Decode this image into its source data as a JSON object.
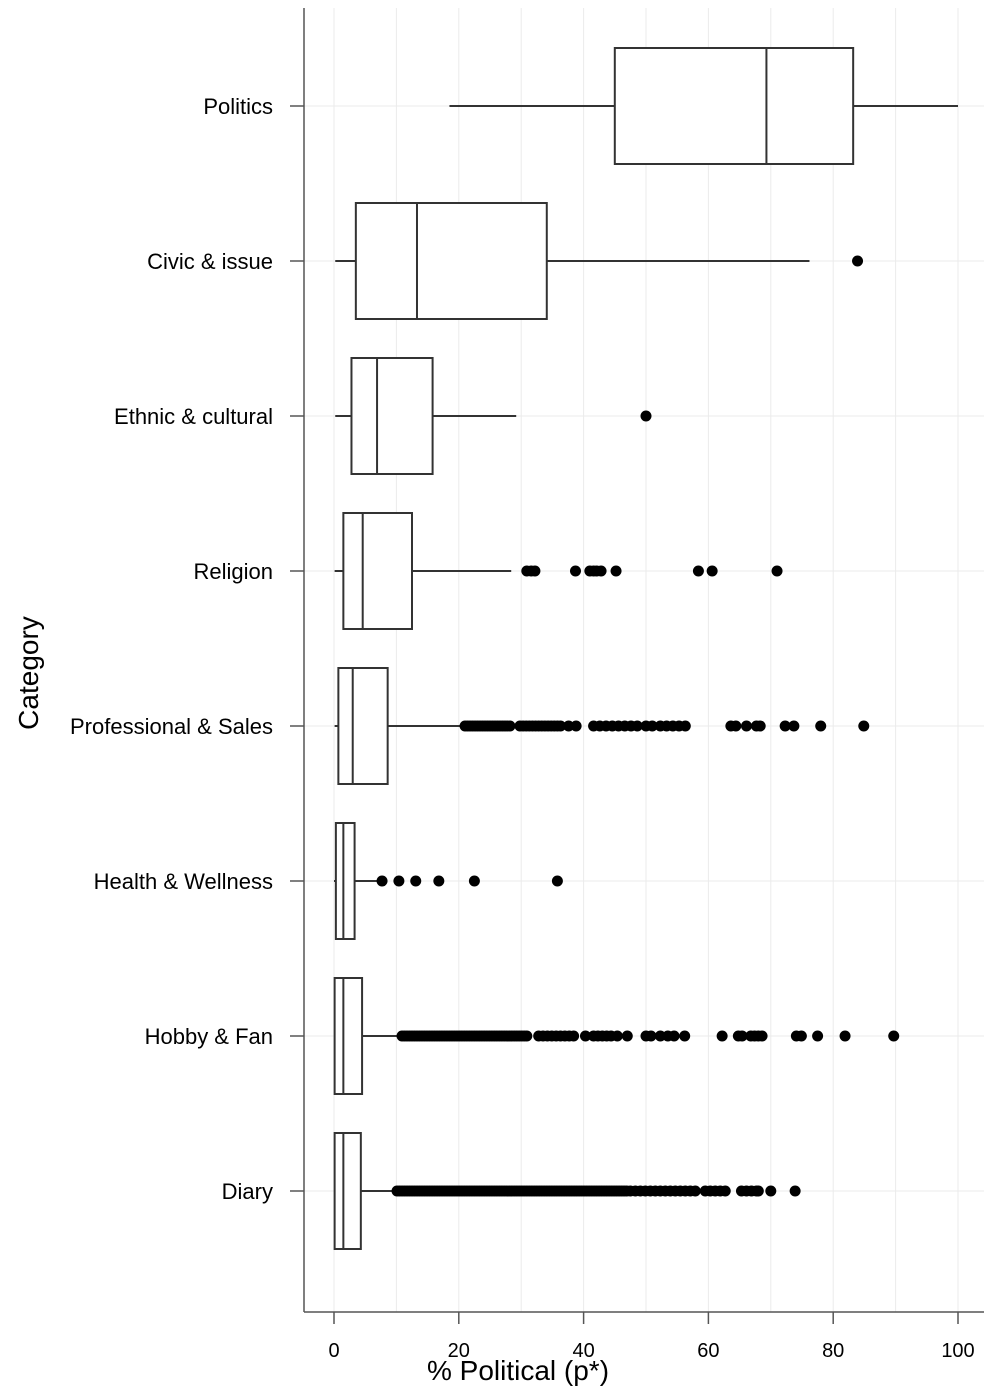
{
  "chart_data": {
    "type": "boxplot",
    "orientation": "horizontal",
    "xlabel": "% Political (p*)",
    "ylabel": "Category",
    "xlim": [
      -4.5,
      103.5
    ],
    "xticks": [
      0,
      20,
      40,
      60,
      80,
      100
    ],
    "grid": true,
    "colors": {
      "box_fill": "#ffffff",
      "stroke": "#333333",
      "outlier": "#000000",
      "grid": "#ebebeb"
    },
    "categories": [
      {
        "name": "Politics",
        "whisker_low": 18.5,
        "q1": 45,
        "median": 69.3,
        "q3": 83.2,
        "whisker_high": 100,
        "outliers": []
      },
      {
        "name": "Civic & issue",
        "whisker_low": 0.2,
        "q1": 3.5,
        "median": 13.3,
        "q3": 34.1,
        "whisker_high": 76.2,
        "outliers": [
          83.9
        ]
      },
      {
        "name": "Ethnic & cultural",
        "whisker_low": 0.2,
        "q1": 2.8,
        "median": 6.9,
        "q3": 15.8,
        "whisker_high": 29.2,
        "outliers": [
          50.0
        ]
      },
      {
        "name": "Religion",
        "whisker_low": 0.1,
        "q1": 1.5,
        "median": 4.6,
        "q3": 12.5,
        "whisker_high": 28.4,
        "outliers": [
          30.9,
          31.6,
          32.2,
          38.7,
          41.0,
          41.6,
          42.1,
          42.8,
          45.2,
          58.4,
          60.6,
          71.0
        ]
      },
      {
        "name": "Professional & Sales",
        "whisker_low": 0.1,
        "q1": 0.7,
        "median": 3.0,
        "q3": 8.6,
        "whisker_high": 20.8,
        "outliers": [
          21.0,
          21.4,
          21.8,
          22.2,
          22.6,
          23.0,
          23.4,
          23.8,
          24.2,
          24.6,
          25.0,
          25.4,
          25.8,
          26.2,
          26.6,
          27.0,
          27.4,
          27.8,
          28.2,
          29.8,
          30.3,
          30.8,
          31.3,
          31.8,
          32.3,
          32.8,
          33.3,
          33.8,
          34.3,
          34.8,
          35.3,
          35.8,
          36.3,
          37.6,
          38.8,
          41.6,
          42.6,
          43.6,
          44.6,
          45.6,
          46.6,
          47.6,
          48.6,
          50.0,
          51.0,
          52.3,
          53.3,
          54.3,
          55.3,
          56.3,
          63.6,
          64.4,
          66.1,
          67.7,
          68.3,
          72.3,
          73.7,
          78.0,
          84.9
        ]
      },
      {
        "name": "Health & Wellness",
        "whisker_low": 0.0,
        "q1": 0.3,
        "median": 1.5,
        "q3": 3.3,
        "whisker_high": 7.4,
        "outliers": [
          7.7,
          10.4,
          13.1,
          16.8,
          22.5,
          35.8
        ]
      },
      {
        "name": "Hobby & Fan",
        "whisker_low": 0.0,
        "q1": 0.1,
        "median": 1.5,
        "q3": 4.5,
        "whisker_high": 10.7,
        "outliers": [
          10.9,
          11.3,
          11.7,
          12.1,
          12.5,
          12.9,
          13.3,
          13.7,
          14.1,
          14.5,
          14.9,
          15.3,
          15.7,
          16.1,
          16.5,
          16.9,
          17.3,
          17.7,
          18.1,
          18.5,
          18.9,
          19.3,
          19.7,
          20.1,
          20.5,
          20.9,
          21.3,
          21.7,
          22.1,
          22.5,
          22.9,
          23.3,
          23.7,
          24.1,
          24.5,
          24.9,
          25.3,
          25.7,
          26.1,
          26.5,
          26.9,
          27.3,
          27.7,
          28.1,
          28.5,
          28.9,
          29.3,
          29.7,
          30.1,
          30.5,
          30.9,
          32.8,
          33.5,
          34.2,
          34.9,
          35.6,
          36.3,
          37.0,
          37.7,
          38.4,
          40.3,
          41.6,
          42.3,
          43.0,
          43.7,
          44.4,
          45.4,
          47.0,
          50.0,
          50.8,
          52.3,
          53.5,
          54.5,
          56.2,
          62.2,
          64.8,
          65.4,
          66.8,
          67.4,
          68.0,
          68.6,
          74.1,
          74.9,
          77.5,
          81.9,
          89.7
        ]
      },
      {
        "name": "Diary",
        "whisker_low": 0.0,
        "q1": 0.1,
        "median": 1.5,
        "q3": 4.3,
        "whisker_high": 9.8,
        "outliers": [
          10.1,
          10.5,
          10.9,
          11.3,
          11.7,
          12.1,
          12.5,
          12.9,
          13.3,
          13.7,
          14.1,
          14.5,
          14.9,
          15.3,
          15.7,
          16.1,
          16.5,
          16.9,
          17.3,
          17.7,
          18.1,
          18.5,
          18.9,
          19.3,
          19.7,
          20.1,
          20.5,
          20.9,
          21.3,
          21.7,
          22.1,
          22.5,
          22.9,
          23.3,
          23.7,
          24.1,
          24.5,
          24.9,
          25.3,
          25.7,
          26.1,
          26.5,
          26.9,
          27.3,
          27.7,
          28.1,
          28.5,
          28.9,
          29.3,
          29.7,
          30.1,
          30.5,
          30.9,
          31.3,
          31.7,
          32.1,
          32.5,
          32.9,
          33.3,
          33.7,
          34.1,
          34.5,
          34.9,
          35.3,
          35.7,
          36.1,
          36.5,
          36.9,
          37.3,
          37.7,
          38.1,
          38.5,
          38.9,
          39.3,
          39.7,
          40.1,
          40.5,
          40.9,
          41.3,
          41.7,
          42.1,
          42.5,
          42.9,
          43.3,
          43.7,
          44.1,
          44.5,
          44.9,
          45.3,
          45.7,
          46.1,
          46.5,
          46.9,
          47.5,
          48.3,
          49.1,
          49.9,
          50.7,
          51.5,
          52.3,
          53.1,
          53.9,
          54.7,
          55.5,
          56.3,
          57.1,
          57.9,
          59.5,
          60.3,
          61.1,
          61.9,
          62.7,
          65.3,
          66.1,
          66.9,
          67.7,
          68.0,
          70.0,
          73.9
        ]
      }
    ]
  }
}
